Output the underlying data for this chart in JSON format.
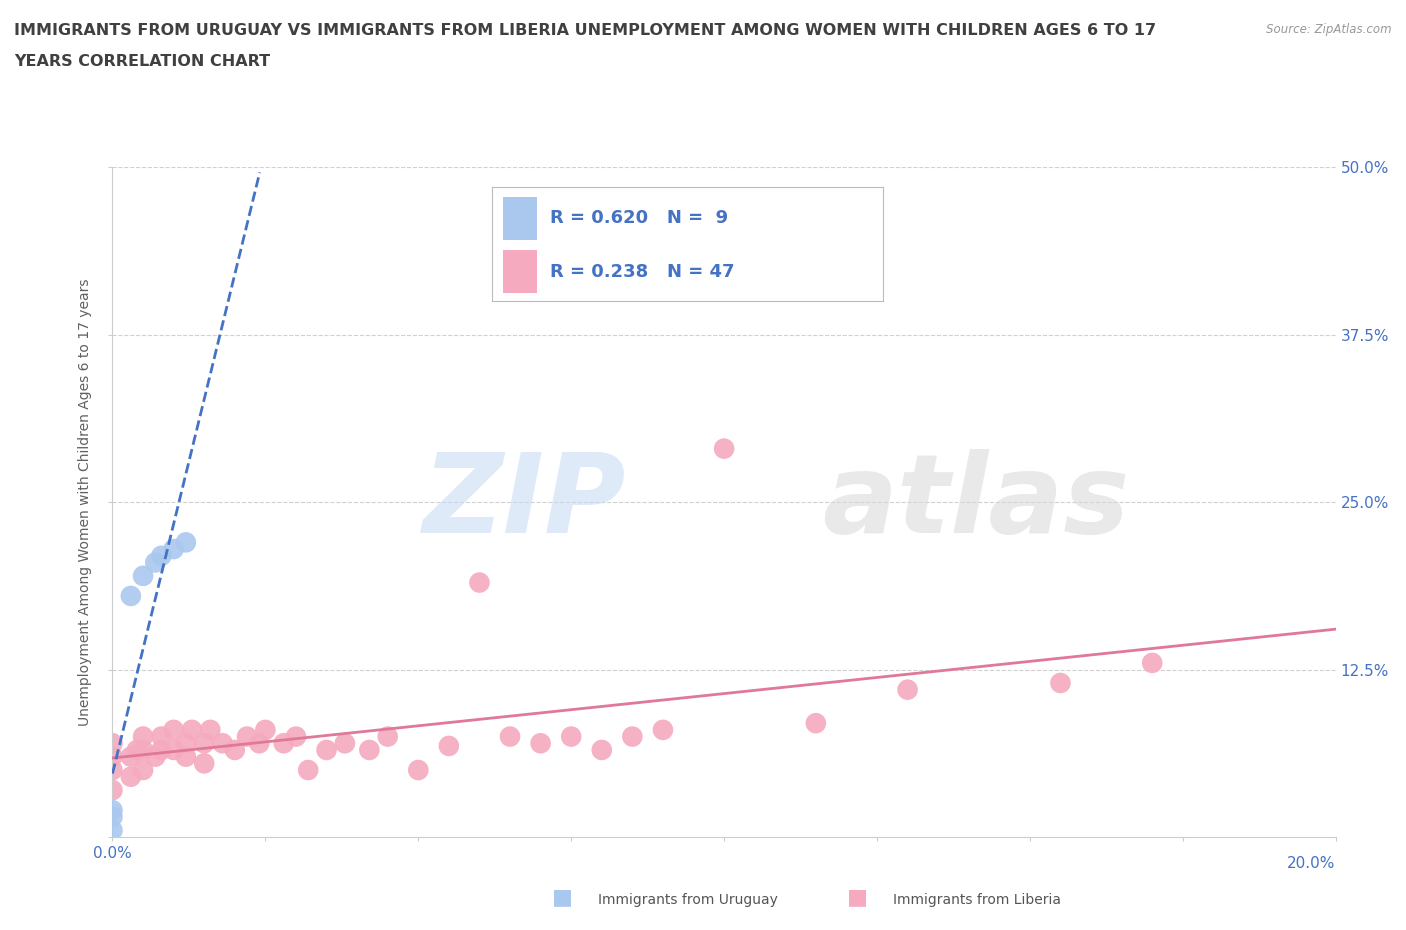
{
  "title_line1": "IMMIGRANTS FROM URUGUAY VS IMMIGRANTS FROM LIBERIA UNEMPLOYMENT AMONG WOMEN WITH CHILDREN AGES 6 TO 17",
  "title_line2": "YEARS CORRELATION CHART",
  "source": "Source: ZipAtlas.com",
  "ylabel": "Unemployment Among Women with Children Ages 6 to 17 years",
  "xlim": [
    0.0,
    0.2
  ],
  "ylim": [
    0.0,
    0.5
  ],
  "xticks": [
    0.0,
    0.025,
    0.05,
    0.075,
    0.1,
    0.125,
    0.15,
    0.175,
    0.2
  ],
  "xticklabels_show": {
    "0.0": "0.0%",
    "0.20": "20.0%"
  },
  "yticks": [
    0.0,
    0.125,
    0.25,
    0.375,
    0.5
  ],
  "yticklabels": [
    "",
    "12.5%",
    "25.0%",
    "37.5%",
    "50.0%"
  ],
  "legend_entries": [
    {
      "label": "Immigrants from Uruguay",
      "color": "#aac8ee",
      "R": 0.62,
      "N": 9
    },
    {
      "label": "Immigrants from Liberia",
      "color": "#f5aabf",
      "R": 0.238,
      "N": 47
    }
  ],
  "uruguay_scatter_x": [
    0.0,
    0.0,
    0.0,
    0.003,
    0.005,
    0.007,
    0.008,
    0.01,
    0.012
  ],
  "uruguay_scatter_y": [
    0.005,
    0.015,
    0.02,
    0.18,
    0.195,
    0.205,
    0.21,
    0.215,
    0.22
  ],
  "liberia_scatter_x": [
    0.0,
    0.0,
    0.0,
    0.0,
    0.003,
    0.003,
    0.004,
    0.005,
    0.005,
    0.005,
    0.007,
    0.008,
    0.008,
    0.01,
    0.01,
    0.012,
    0.012,
    0.013,
    0.015,
    0.015,
    0.016,
    0.018,
    0.02,
    0.022,
    0.024,
    0.025,
    0.028,
    0.03,
    0.032,
    0.035,
    0.038,
    0.042,
    0.045,
    0.05,
    0.055,
    0.06,
    0.065,
    0.07,
    0.075,
    0.08,
    0.085,
    0.09,
    0.1,
    0.115,
    0.13,
    0.155,
    0.17
  ],
  "liberia_scatter_y": [
    0.035,
    0.05,
    0.06,
    0.07,
    0.045,
    0.06,
    0.065,
    0.05,
    0.065,
    0.075,
    0.06,
    0.065,
    0.075,
    0.065,
    0.08,
    0.06,
    0.07,
    0.08,
    0.055,
    0.07,
    0.08,
    0.07,
    0.065,
    0.075,
    0.07,
    0.08,
    0.07,
    0.075,
    0.05,
    0.065,
    0.07,
    0.065,
    0.075,
    0.05,
    0.068,
    0.19,
    0.075,
    0.07,
    0.075,
    0.065,
    0.075,
    0.08,
    0.29,
    0.085,
    0.11,
    0.115,
    0.13
  ],
  "uruguay_color": "#aac8ee",
  "liberia_color": "#f5aabf",
  "uruguay_line_color": "#4472c4",
  "liberia_line_color": "#e07898",
  "watermark_zip": "ZIP",
  "watermark_atlas": "atlas",
  "background_color": "#ffffff",
  "grid_color": "#d0d0d0",
  "title_color": "#404040",
  "axis_label_color": "#606060",
  "tick_label_color": "#4472c4",
  "legend_text_color": "#333333",
  "legend_R_color": "#4472c4"
}
